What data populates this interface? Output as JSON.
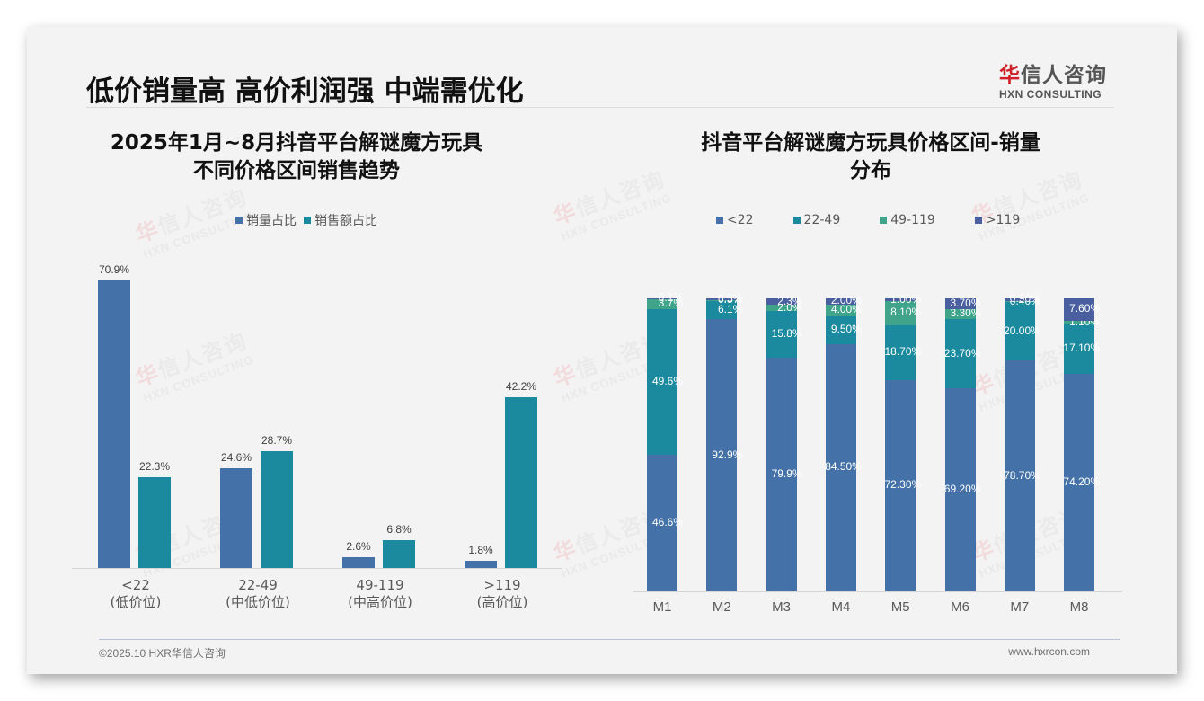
{
  "slide": {
    "title": "低价销量高 高价利润强 中端需优化",
    "logo": {
      "cn_first": "华",
      "cn_rest": "信人咨询",
      "en": "HXN CONSULTING"
    },
    "footer": {
      "left": "©2025.10 HXR华信人咨询",
      "right": "www.hxrcon.com"
    },
    "watermark": {
      "cn_first": "华",
      "cn_rest": "信人咨询",
      "en": "HXN CONSULTING"
    }
  },
  "left_panel": {
    "title_line1": "2025年1月~8月抖音平台解谜魔方玩具",
    "title_line2": "不同价格区间销售趋势",
    "legend": [
      {
        "label": "销量占比",
        "color": "#4472a8"
      },
      {
        "label": "销售额占比",
        "color": "#1b8a9e"
      }
    ],
    "categories": [
      {
        "range": "<22",
        "tier": "(低价位)"
      },
      {
        "range": "22-49",
        "tier": "(中低价位)"
      },
      {
        "range": "49-119",
        "tier": "(中高价位)"
      },
      {
        "range": ">119",
        "tier": "(高价位)"
      }
    ],
    "labels": {
      "volume": [
        "70.9%",
        "24.6%",
        "2.6%",
        "1.8%"
      ],
      "sales": [
        "22.3%",
        "28.7%",
        "6.8%",
        "42.2%"
      ]
    }
  },
  "right_panel": {
    "title_line1": "抖音平台解谜魔方玩具价格区间-销量",
    "title_line2": "分布",
    "legend": [
      {
        "label": "<22",
        "color": "#4472a8"
      },
      {
        "label": "22-49",
        "color": "#1b8a9e"
      },
      {
        "label": "49-119",
        "color": "#3fa48a"
      },
      {
        "label": ">119",
        "color": "#4a5fa0"
      }
    ],
    "months": [
      "M1",
      "M2",
      "M3",
      "M4",
      "M5",
      "M6",
      "M7",
      "M8"
    ],
    "labels": [
      [
        "46.6%",
        "49.6%",
        "3.7%",
        "0.1%"
      ],
      [
        "92.9%",
        "6.1%",
        "0.5%",
        "0.5%"
      ],
      [
        "79.9%",
        "15.8%",
        "2.0%",
        "2.3%"
      ],
      [
        "84.50%",
        "9.50%",
        "4.00%",
        "2.00%"
      ],
      [
        "72.30%",
        "18.70%",
        "8.10%",
        "1.00%"
      ],
      [
        "69.20%",
        "23.70%",
        "3.30%",
        "3.70%"
      ],
      [
        "78.70%",
        "20.00%",
        "0.40%",
        "0.90%"
      ],
      [
        "74.20%",
        "17.10%",
        "1.10%",
        "7.60%"
      ]
    ]
  },
  "chart_data": [
    {
      "type": "bar",
      "title": "2025年1月~8月抖音平台解谜魔方玩具不同价格区间销售趋势",
      "categories": [
        "<22 (低价位)",
        "22-49 (中低价位)",
        "49-119 (中高价位)",
        ">119 (高价位)"
      ],
      "series": [
        {
          "name": "销量占比",
          "values": [
            70.9,
            24.6,
            2.6,
            1.8
          ],
          "color": "#4472a8"
        },
        {
          "name": "销售额占比",
          "values": [
            22.3,
            28.7,
            6.8,
            42.2
          ],
          "color": "#1b8a9e"
        }
      ],
      "xlabel": "",
      "ylabel": "",
      "ylim": [
        0,
        75
      ],
      "unit": "%",
      "grid": false,
      "legend_position": "top"
    },
    {
      "type": "bar",
      "stacked": true,
      "title": "抖音平台解谜魔方玩具价格区间-销量分布",
      "categories": [
        "M1",
        "M2",
        "M3",
        "M4",
        "M5",
        "M6",
        "M7",
        "M8"
      ],
      "series": [
        {
          "name": "<22",
          "values": [
            46.6,
            92.9,
            79.9,
            84.5,
            72.3,
            69.2,
            78.7,
            74.2
          ],
          "color": "#4472a8"
        },
        {
          "name": "22-49",
          "values": [
            49.6,
            6.1,
            15.8,
            9.5,
            18.7,
            23.7,
            20.0,
            17.1
          ],
          "color": "#1b8a9e"
        },
        {
          "name": "49-119",
          "values": [
            3.7,
            0.5,
            2.0,
            4.0,
            8.1,
            3.3,
            0.4,
            1.1
          ],
          "color": "#3fa48a"
        },
        {
          "name": ">119",
          "values": [
            0.1,
            0.5,
            2.3,
            2.0,
            1.0,
            3.7,
            0.9,
            7.6
          ],
          "color": "#4a5fa0"
        }
      ],
      "xlabel": "",
      "ylabel": "",
      "ylim": [
        0,
        100
      ],
      "unit": "%",
      "grid": false,
      "legend_position": "top"
    }
  ]
}
